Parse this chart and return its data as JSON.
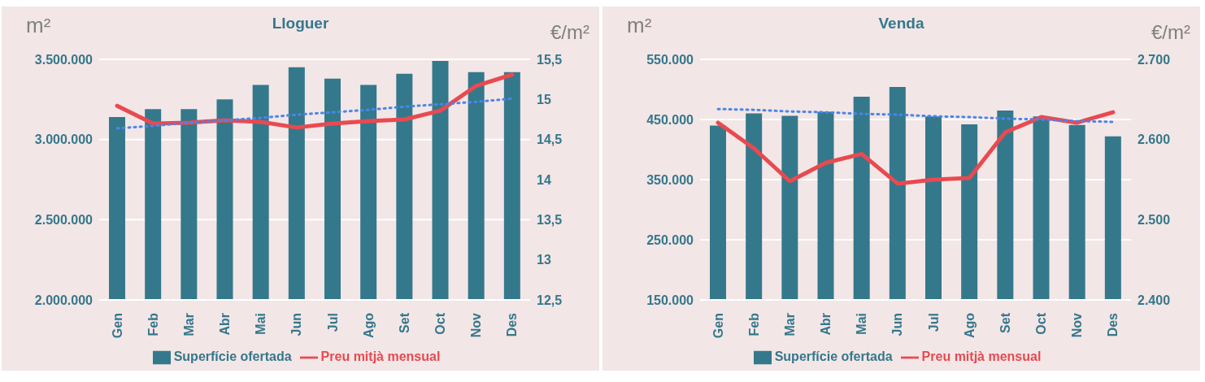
{
  "chart_data": [
    {
      "type": "bar",
      "title": "Lloguer",
      "ylabel": "m²",
      "y2label": "€/m²",
      "categories": [
        "Gen",
        "Feb",
        "Mar",
        "Abr",
        "Mai",
        "Jun",
        "Jul",
        "Ago",
        "Set",
        "Oct",
        "Nov",
        "Des"
      ],
      "series": [
        {
          "name": "Superfície ofertada",
          "color": "#34788c",
          "values": [
            3140000,
            3190000,
            3190000,
            3250000,
            3340000,
            3450000,
            3380000,
            3340000,
            3410000,
            3490000,
            3420000,
            3420000
          ]
        },
        {
          "name": "Preu mitjà mensual",
          "type": "line",
          "axis": "y2",
          "color": "#e84a50",
          "values": [
            14.92,
            14.7,
            14.71,
            14.74,
            14.72,
            14.65,
            14.7,
            14.73,
            14.75,
            14.86,
            15.17,
            15.31
          ]
        },
        {
          "type": "line",
          "axis": "y2",
          "color": "#4a86e8",
          "line_style": "dotted",
          "values": [
            14.64,
            14.67,
            14.71,
            14.74,
            14.77,
            14.81,
            14.84,
            14.87,
            14.91,
            14.94,
            14.97,
            15.01
          ]
        }
      ],
      "ylim": [
        2000000,
        3500000
      ],
      "yticks": [
        {
          "value": 2000000,
          "label": "2.000.000"
        },
        {
          "value": 2500000,
          "label": "2.500.000"
        },
        {
          "value": 3000000,
          "label": "3.000.000"
        },
        {
          "value": 3500000,
          "label": "3.500.000"
        }
      ],
      "y2lim": [
        12.5,
        15.5
      ],
      "y2ticks": [
        {
          "value": 12.5,
          "label": "12,5"
        },
        13,
        {
          "value": 13.5,
          "label": "13,5"
        },
        14,
        {
          "value": 14.5,
          "label": "14,5"
        },
        15,
        {
          "value": 15.5,
          "label": "15,5"
        }
      ],
      "grid": "y",
      "legend": "bottom"
    },
    {
      "type": "bar",
      "title": "Venda",
      "ylabel": "m²",
      "y2label": "€/m²",
      "categories": [
        "Gen",
        "Feb",
        "Mar",
        "Abr",
        "Mai",
        "Jun",
        "Jul",
        "Ago",
        "Set",
        "Oct",
        "Nov",
        "Des"
      ],
      "series": [
        {
          "name": "Superfície ofertada",
          "color": "#34788c",
          "values": [
            440000,
            460000,
            456000,
            463000,
            488000,
            504000,
            455000,
            442000,
            465000,
            455000,
            441000,
            422000
          ]
        },
        {
          "name": "Preu mitjà mensual",
          "type": "line",
          "axis": "y2",
          "color": "#e84a50",
          "values": [
            2621,
            2589,
            2548,
            2571,
            2582,
            2545,
            2550,
            2552,
            2609,
            2628,
            2621,
            2634
          ]
        },
        {
          "type": "line",
          "axis": "y2",
          "color": "#4a86e8",
          "line_style": "dotted",
          "values": [
            2638,
            2637,
            2635,
            2634,
            2632,
            2631,
            2629,
            2628,
            2626,
            2625,
            2623,
            2622
          ]
        }
      ],
      "ylim": [
        150000,
        550000
      ],
      "yticks": [
        {
          "value": 150000,
          "label": "150.000"
        },
        {
          "value": 250000,
          "label": "250.000"
        },
        {
          "value": 350000,
          "label": "350.000"
        },
        {
          "value": 450000,
          "label": "450.000"
        },
        {
          "value": 550000,
          "label": "550.000"
        }
      ],
      "y2lim": [
        2400,
        2700
      ],
      "y2ticks": [
        {
          "value": 2400,
          "label": "2.400"
        },
        {
          "value": 2500,
          "label": "2.500"
        },
        {
          "value": 2600,
          "label": "2.600"
        },
        {
          "value": 2700,
          "label": "2.700"
        }
      ],
      "grid": "y",
      "legend": "bottom"
    }
  ]
}
